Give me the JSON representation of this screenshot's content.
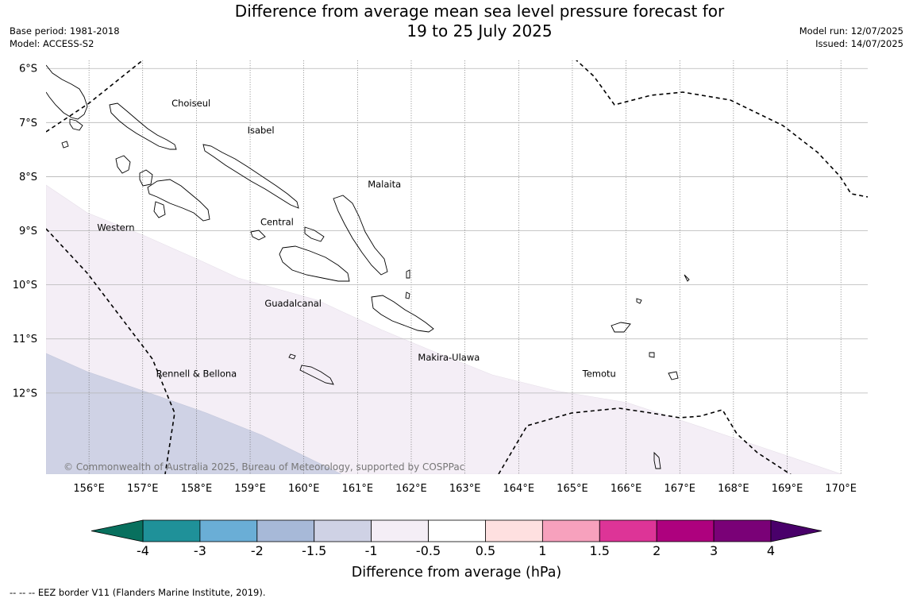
{
  "title": {
    "line1": "Difference from average mean sea level pressure forecast for",
    "line2": "19 to 25 July 2025"
  },
  "meta": {
    "base_period": "Base period: 1981-2018",
    "model": "Model: ACCESS-S2",
    "model_run": "Model run: 12/07/2025",
    "issued": "Issued: 14/07/2025"
  },
  "map": {
    "lon_range": [
      155.2,
      170.5
    ],
    "lat_range": [
      -13.5,
      -5.85
    ],
    "lon_ticks": [
      "156°E",
      "157°E",
      "158°E",
      "159°E",
      "160°E",
      "161°E",
      "162°E",
      "163°E",
      "164°E",
      "165°E",
      "166°E",
      "167°E",
      "168°E",
      "169°E",
      "170°E"
    ],
    "lat_ticks": [
      "6°S",
      "7°S",
      "8°S",
      "9°S",
      "10°S",
      "11°S",
      "12°S"
    ],
    "provinces": [
      {
        "name": "Choiseul",
        "lon": 157.9,
        "lat": -6.7
      },
      {
        "name": "Isabel",
        "lon": 159.2,
        "lat": -7.2
      },
      {
        "name": "Malaita",
        "lon": 161.5,
        "lat": -8.2
      },
      {
        "name": "Central",
        "lon": 159.5,
        "lat": -8.9
      },
      {
        "name": "Western",
        "lon": 156.5,
        "lat": -9.0
      },
      {
        "name": "Guadalcanal",
        "lon": 159.8,
        "lat": -10.4
      },
      {
        "name": "Makira-Ulawa",
        "lon": 162.7,
        "lat": -11.4
      },
      {
        "name": "Rennell & Bellona",
        "lon": 158.0,
        "lat": -11.7
      },
      {
        "name": "Temotu",
        "lon": 165.5,
        "lat": -11.7
      }
    ],
    "copyright": "© Commonwealth of Australia 2025, Bureau of Meteorology, supported by COSPPac"
  },
  "colorbar": {
    "title": "Difference from average (hPa)",
    "ticks": [
      "-4",
      "-3",
      "-2",
      "-1.5",
      "-1",
      "-0.5",
      "0.5",
      "1",
      "1.5",
      "2",
      "3",
      "4"
    ],
    "colors": {
      "under": "#08705e",
      "bins": [
        "#1f9199",
        "#6aaed6",
        "#a7b9d8",
        "#cfd2e5",
        "#f4eef6",
        "#ffffff",
        "#fee0e0",
        "#f7a1bd",
        "#dd3497",
        "#ae017e",
        "#7a0177"
      ],
      "over": "#49006a"
    }
  },
  "shading": {
    "light_color": "#f4eef6",
    "mid_color": "#cfd2e5"
  },
  "footer": {
    "legend": "--  --  -- EEZ border V11 (Flanders Marine Institute, 2019)."
  }
}
